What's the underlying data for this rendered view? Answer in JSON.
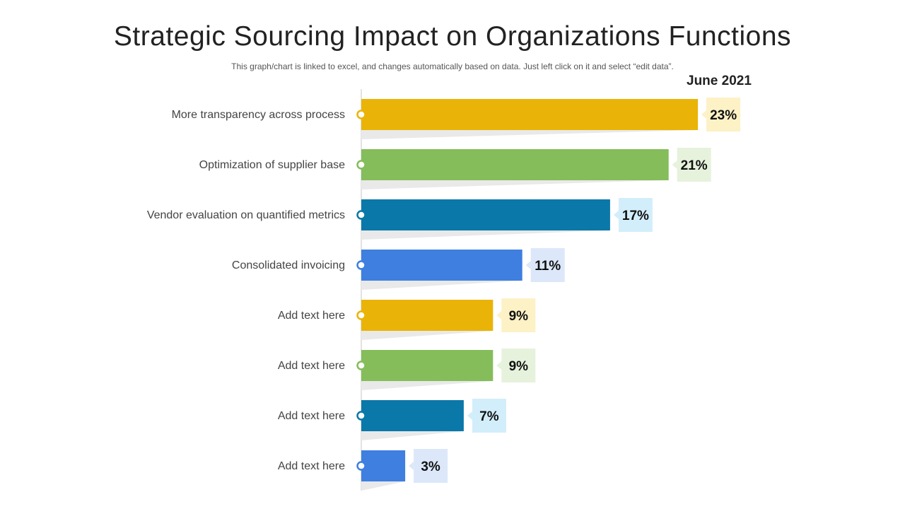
{
  "header": {
    "title": "Strategic Sourcing Impact on Organizations Functions",
    "subtitle": "This graph/chart is linked to excel, and changes automatically based on data. Just left click on it and select “edit data”."
  },
  "chart_data": {
    "type": "bar",
    "orientation": "horizontal",
    "title": "Strategic Sourcing Impact on Organizations Functions",
    "series_name": "June 2021",
    "categories": [
      "More transparency across process",
      "Optimization of supplier base",
      "Vendor evaluation on quantified metrics",
      "Consolidated invoicing",
      "Add text here",
      "Add text here",
      "Add text here",
      "Add text here"
    ],
    "values": [
      23,
      21,
      17,
      11,
      9,
      9,
      7,
      3
    ],
    "value_labels": [
      "23%",
      "21%",
      "17%",
      "11%",
      "9%",
      "9%",
      "7%",
      "3%"
    ],
    "unit": "%",
    "xlim": [
      0,
      25
    ],
    "colors": [
      "#EAB308",
      "#84BD5A",
      "#0A78A8",
      "#3E7FE0",
      "#EAB308",
      "#84BD5A",
      "#0A78A8",
      "#3E7FE0"
    ],
    "label_backgrounds": [
      "#FDF1C6",
      "#E6F2DC",
      "#D3EEFB",
      "#DCE8F9",
      "#FDF1C6",
      "#E6F2DC",
      "#D3EEFB",
      "#DCE8F9"
    ],
    "grid": false,
    "legend": "none"
  }
}
